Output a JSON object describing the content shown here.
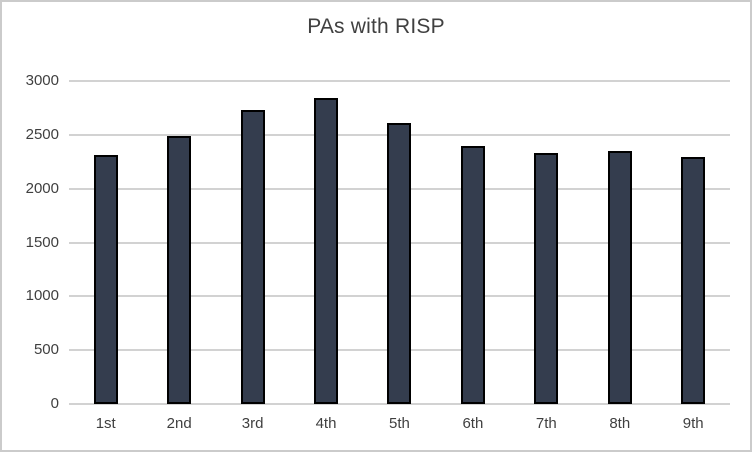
{
  "chart_data": {
    "type": "bar",
    "title": "PAs with RISP",
    "categories": [
      "1st",
      "2nd",
      "3rd",
      "4th",
      "5th",
      "6th",
      "7th",
      "8th",
      "9th"
    ],
    "values": [
      2310,
      2490,
      2730,
      2840,
      2610,
      2400,
      2330,
      2350,
      2290
    ],
    "xlabel": "",
    "ylabel": "",
    "ylim": [
      0,
      3000
    ],
    "yticks": [
      0,
      500,
      1000,
      1500,
      2000,
      2500,
      3000
    ],
    "grid": true,
    "legend": false,
    "colors": {
      "bar_fill": "#343d4e",
      "bar_border": "#000000",
      "gridline": "#d2d2d2",
      "tick_text": "#3f3f3f",
      "title_text": "#404040",
      "frame_border": "#cbcbcb",
      "background": "#ffffff"
    }
  }
}
